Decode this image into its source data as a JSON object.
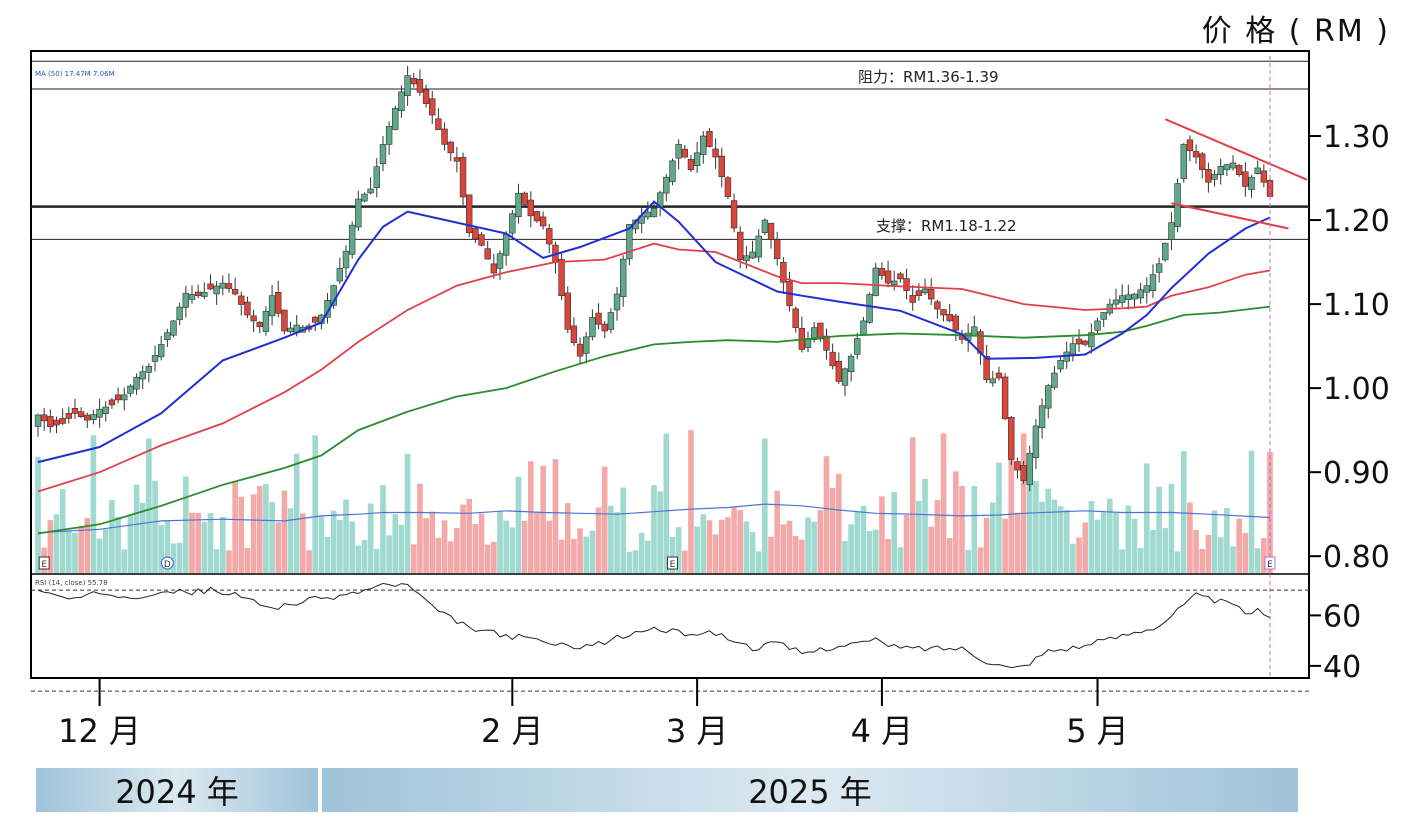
{
  "chart_data": {
    "type": "candlestick",
    "unit_label": "价 格 ( RM )",
    "legend_top": "MA (50) 17.47M 7.06M",
    "legend_rsi": "RSI (14, close) 55.78",
    "price_axis": {
      "ylim": [
        0.78,
        1.4
      ],
      "ticks": [
        "1.30",
        "1.20",
        "1.10",
        "1.00",
        "0.90",
        "0.80"
      ]
    },
    "rsi_axis": {
      "ylim": [
        36,
        76
      ],
      "ticks": [
        "60",
        "40"
      ],
      "levels": [
        70,
        30
      ]
    },
    "resistance": {
      "label": "阻力：RM1.36-1.39",
      "levels": [
        1.389,
        1.356
      ]
    },
    "support": {
      "label": "支撑：RM1.18-1.22",
      "levels": [
        1.216,
        1.177
      ]
    },
    "months": [
      "12 月",
      "2 月",
      "3 月",
      "4 月",
      "5 月"
    ],
    "years": [
      "2024 年",
      "2025 年"
    ],
    "event_markers": [
      "E",
      "D",
      "E",
      "E"
    ],
    "colors": {
      "up": "#5fa98a",
      "down": "#d8473a",
      "ma_short": "#1f2fd4",
      "ma_mid": "#e0404a",
      "ma_long": "#2d8a2d",
      "vol_up": "#9fd9cf",
      "vol_down": "#f4a9a9",
      "vol_ma": "#4d73d9",
      "trend": "#e0404a"
    },
    "series": [
      {
        "name": "Price",
        "points": [
          [
            0,
            0.968
          ],
          [
            2,
            0.954
          ],
          [
            4,
            0.958
          ],
          [
            6,
            0.97
          ],
          [
            8,
            0.962
          ],
          [
            10,
            0.975
          ],
          [
            12,
            0.98
          ],
          [
            14,
            0.992
          ],
          [
            16,
            1.013
          ],
          [
            18,
            1.026
          ],
          [
            20,
            1.052
          ],
          [
            22,
            1.08
          ],
          [
            24,
            1.113
          ],
          [
            26,
            1.11
          ],
          [
            28,
            1.118
          ],
          [
            30,
            1.125
          ],
          [
            32,
            1.112
          ],
          [
            34,
            1.087
          ],
          [
            36,
            1.073
          ],
          [
            38,
            1.11
          ],
          [
            40,
            1.068
          ],
          [
            42,
            1.075
          ],
          [
            44,
            1.07
          ],
          [
            46,
            1.087
          ],
          [
            48,
            1.122
          ],
          [
            50,
            1.163
          ],
          [
            52,
            1.225
          ],
          [
            54,
            1.237
          ],
          [
            56,
            1.29
          ],
          [
            58,
            1.333
          ],
          [
            60,
            1.372
          ],
          [
            62,
            1.352
          ],
          [
            64,
            1.325
          ],
          [
            66,
            1.29
          ],
          [
            68,
            1.27
          ],
          [
            70,
            1.185
          ],
          [
            72,
            1.17
          ],
          [
            74,
            1.137
          ],
          [
            76,
            1.183
          ],
          [
            78,
            1.232
          ],
          [
            80,
            1.205
          ],
          [
            82,
            1.193
          ],
          [
            84,
            1.15
          ],
          [
            86,
            1.07
          ],
          [
            88,
            1.038
          ],
          [
            90,
            1.084
          ],
          [
            92,
            1.068
          ],
          [
            94,
            1.112
          ],
          [
            96,
            1.195
          ],
          [
            98,
            1.205
          ],
          [
            100,
            1.214
          ],
          [
            102,
            1.251
          ],
          [
            104,
            1.29
          ],
          [
            106,
            1.26
          ],
          [
            108,
            1.3
          ],
          [
            110,
            1.275
          ],
          [
            112,
            1.228
          ],
          [
            114,
            1.153
          ],
          [
            116,
            1.162
          ],
          [
            118,
            1.2
          ],
          [
            120,
            1.154
          ],
          [
            122,
            1.098
          ],
          [
            124,
            1.046
          ],
          [
            126,
            1.072
          ],
          [
            128,
            1.045
          ],
          [
            130,
            1.008
          ],
          [
            132,
            1.038
          ],
          [
            134,
            1.08
          ],
          [
            136,
            1.143
          ],
          [
            138,
            1.125
          ],
          [
            140,
            1.13
          ],
          [
            142,
            1.102
          ],
          [
            144,
            1.118
          ],
          [
            146,
            1.094
          ],
          [
            148,
            1.08
          ],
          [
            150,
            1.058
          ],
          [
            152,
            1.073
          ],
          [
            154,
            1.01
          ],
          [
            156,
            1.012
          ],
          [
            158,
            0.915
          ],
          [
            160,
            0.89
          ],
          [
            162,
            0.955
          ],
          [
            164,
            1.003
          ],
          [
            166,
            1.033
          ],
          [
            168,
            1.053
          ],
          [
            170,
            1.052
          ],
          [
            172,
            1.08
          ],
          [
            174,
            1.1
          ],
          [
            176,
            1.11
          ],
          [
            178,
            1.112
          ],
          [
            180,
            1.122
          ],
          [
            182,
            1.148
          ],
          [
            184,
            1.197
          ],
          [
            186,
            1.29
          ],
          [
            188,
            1.275
          ],
          [
            190,
            1.245
          ],
          [
            192,
            1.264
          ],
          [
            194,
            1.268
          ],
          [
            196,
            1.24
          ],
          [
            198,
            1.262
          ],
          [
            200,
            1.228
          ]
        ]
      },
      {
        "name": "MA short",
        "points": [
          [
            0,
            0.912
          ],
          [
            10,
            0.93
          ],
          [
            20,
            0.97
          ],
          [
            30,
            1.033
          ],
          [
            40,
            1.06
          ],
          [
            46,
            1.078
          ],
          [
            52,
            1.153
          ],
          [
            56,
            1.192
          ],
          [
            60,
            1.21
          ],
          [
            68,
            1.197
          ],
          [
            76,
            1.184
          ],
          [
            82,
            1.155
          ],
          [
            88,
            1.168
          ],
          [
            96,
            1.19
          ],
          [
            100,
            1.222
          ],
          [
            104,
            1.198
          ],
          [
            110,
            1.15
          ],
          [
            120,
            1.115
          ],
          [
            124,
            1.11
          ],
          [
            130,
            1.103
          ],
          [
            140,
            1.092
          ],
          [
            150,
            1.064
          ],
          [
            154,
            1.035
          ],
          [
            162,
            1.036
          ],
          [
            170,
            1.04
          ],
          [
            176,
            1.065
          ],
          [
            180,
            1.087
          ],
          [
            184,
            1.119
          ],
          [
            190,
            1.16
          ],
          [
            196,
            1.19
          ],
          [
            200,
            1.203
          ]
        ]
      },
      {
        "name": "MA mid",
        "points": [
          [
            0,
            0.877
          ],
          [
            10,
            0.9
          ],
          [
            20,
            0.932
          ],
          [
            30,
            0.958
          ],
          [
            40,
            0.995
          ],
          [
            46,
            1.022
          ],
          [
            52,
            1.055
          ],
          [
            60,
            1.093
          ],
          [
            68,
            1.122
          ],
          [
            76,
            1.138
          ],
          [
            84,
            1.15
          ],
          [
            92,
            1.153
          ],
          [
            100,
            1.172
          ],
          [
            104,
            1.165
          ],
          [
            110,
            1.162
          ],
          [
            120,
            1.133
          ],
          [
            124,
            1.125
          ],
          [
            130,
            1.125
          ],
          [
            140,
            1.121
          ],
          [
            150,
            1.118
          ],
          [
            160,
            1.1
          ],
          [
            170,
            1.093
          ],
          [
            176,
            1.095
          ],
          [
            180,
            1.097
          ],
          [
            184,
            1.11
          ],
          [
            190,
            1.12
          ],
          [
            196,
            1.135
          ],
          [
            200,
            1.14
          ]
        ]
      },
      {
        "name": "MA long",
        "points": [
          [
            0,
            0.827
          ],
          [
            10,
            0.838
          ],
          [
            20,
            0.86
          ],
          [
            30,
            0.885
          ],
          [
            40,
            0.905
          ],
          [
            46,
            0.92
          ],
          [
            52,
            0.95
          ],
          [
            60,
            0.972
          ],
          [
            68,
            0.99
          ],
          [
            76,
            1.0
          ],
          [
            84,
            1.02
          ],
          [
            92,
            1.038
          ],
          [
            100,
            1.052
          ],
          [
            106,
            1.055
          ],
          [
            112,
            1.057
          ],
          [
            120,
            1.055
          ],
          [
            130,
            1.062
          ],
          [
            140,
            1.065
          ],
          [
            150,
            1.063
          ],
          [
            160,
            1.06
          ],
          [
            170,
            1.063
          ],
          [
            176,
            1.067
          ],
          [
            180,
            1.074
          ],
          [
            186,
            1.087
          ],
          [
            192,
            1.09
          ],
          [
            200,
            1.097
          ]
        ]
      },
      {
        "name": "Volume MA",
        "points": [
          [
            0,
            0.828
          ],
          [
            10,
            0.832
          ],
          [
            20,
            0.842
          ],
          [
            30,
            0.844
          ],
          [
            40,
            0.842
          ],
          [
            46,
            0.848
          ],
          [
            52,
            0.85
          ],
          [
            56,
            0.852
          ],
          [
            62,
            0.852
          ],
          [
            70,
            0.851
          ],
          [
            76,
            0.854
          ],
          [
            82,
            0.852
          ],
          [
            88,
            0.851
          ],
          [
            94,
            0.85
          ],
          [
            100,
            0.853
          ],
          [
            106,
            0.856
          ],
          [
            112,
            0.858
          ],
          [
            118,
            0.862
          ],
          [
            124,
            0.86
          ],
          [
            130,
            0.855
          ],
          [
            136,
            0.851
          ],
          [
            142,
            0.85
          ],
          [
            150,
            0.848
          ],
          [
            156,
            0.849
          ],
          [
            160,
            0.851
          ],
          [
            170,
            0.854
          ],
          [
            176,
            0.852
          ],
          [
            184,
            0.852
          ],
          [
            190,
            0.85
          ],
          [
            200,
            0.846
          ]
        ]
      },
      {
        "name": "RSI",
        "points": [
          [
            0,
            69.5
          ],
          [
            6,
            66
          ],
          [
            10,
            69
          ],
          [
            16,
            67.5
          ],
          [
            20,
            70
          ],
          [
            24,
            69
          ],
          [
            28,
            70
          ],
          [
            32,
            68
          ],
          [
            38,
            63
          ],
          [
            44,
            66
          ],
          [
            50,
            68
          ],
          [
            56,
            72
          ],
          [
            60,
            72
          ],
          [
            64,
            63
          ],
          [
            70,
            55
          ],
          [
            76,
            52
          ],
          [
            82,
            50
          ],
          [
            84,
            48
          ],
          [
            90,
            48
          ],
          [
            94,
            51
          ],
          [
            100,
            55
          ],
          [
            104,
            53
          ],
          [
            110,
            53
          ],
          [
            116,
            47
          ],
          [
            120,
            49
          ],
          [
            124,
            45
          ],
          [
            130,
            48
          ],
          [
            136,
            50
          ],
          [
            140,
            47
          ],
          [
            150,
            47
          ],
          [
            154,
            42
          ],
          [
            158,
            39
          ],
          [
            160,
            40
          ],
          [
            164,
            46
          ],
          [
            170,
            48
          ],
          [
            176,
            52
          ],
          [
            182,
            56
          ],
          [
            186,
            64
          ],
          [
            188,
            68
          ],
          [
            194,
            64
          ],
          [
            196,
            61
          ],
          [
            198,
            62
          ],
          [
            200,
            58
          ]
        ]
      }
    ]
  }
}
